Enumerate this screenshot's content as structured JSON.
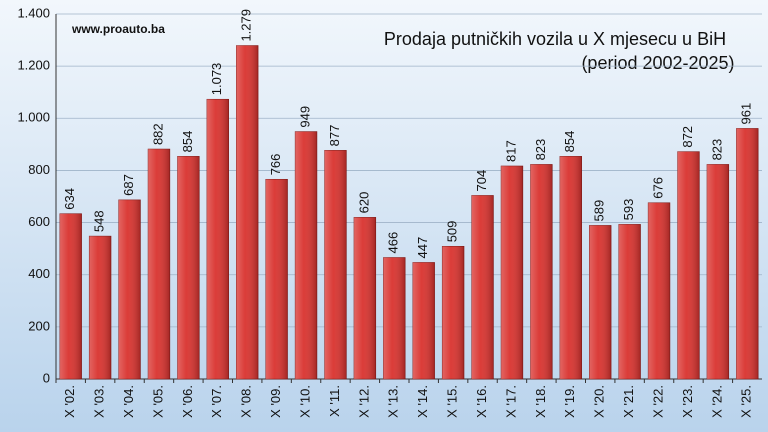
{
  "chart_data": {
    "type": "bar",
    "title": "Prodaja putničkih vozila u X mjesecu u BiH",
    "subtitle": "(period 2002-2025)",
    "source": "www.proauto.ba",
    "categories": [
      "X '02.",
      "X '03.",
      "X '04.",
      "X '05.",
      "X '06.",
      "X '07.",
      "X '08.",
      "X '09.",
      "X '10.",
      "X '11.",
      "X '12.",
      "X '13.",
      "X '14.",
      "X '15.",
      "X '16.",
      "X '17.",
      "X '18.",
      "X '19.",
      "X '20.",
      "X '21.",
      "X '22.",
      "X '23.",
      "X '24.",
      "X '25."
    ],
    "values": [
      634,
      548,
      687,
      882,
      854,
      1073,
      1279,
      766,
      949,
      877,
      620,
      466,
      447,
      509,
      704,
      817,
      823,
      854,
      589,
      593,
      676,
      872,
      823,
      961
    ],
    "value_labels": [
      "634",
      "548",
      "687",
      "882",
      "854",
      "1.073",
      "1.279",
      "766",
      "949",
      "877",
      "620",
      "466",
      "447",
      "509",
      "704",
      "817",
      "823",
      "854",
      "589",
      "593",
      "676",
      "872",
      "823",
      "961"
    ],
    "color": "#d9322e",
    "ylim": [
      0,
      1400
    ],
    "yticks": [
      0,
      200,
      400,
      600,
      800,
      {
        "value": 1000,
        "label": "1.000"
      },
      {
        "value": 1200,
        "label": "1.200"
      },
      {
        "value": 1400,
        "label": "1.400"
      }
    ],
    "grid": true
  }
}
